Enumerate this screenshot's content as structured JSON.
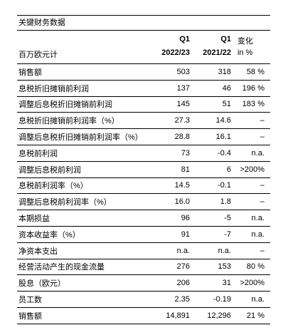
{
  "title": "关键财务数据",
  "header": {
    "col1_q": "Q1",
    "col2_q": "Q1",
    "col1_year": "2022/23",
    "col2_year": "2021/22",
    "change_label": "变化",
    "change_unit": "in %",
    "unit_label": "百万欧元计"
  },
  "rows": [
    {
      "label": "销售额",
      "v1": "503",
      "v2": "318",
      "chg": "58 %"
    },
    {
      "label": "息税折旧摊销前利润",
      "v1": "137",
      "v2": "46",
      "chg": "196 %"
    },
    {
      "label": "调整后息税折旧摊销前利润",
      "v1": "145",
      "v2": "51",
      "chg": "183 %"
    },
    {
      "label": "息税折旧摊销前利润率（%）",
      "v1": "27.3",
      "v2": "14.6",
      "chg": "–"
    },
    {
      "label": "调整后息税折旧摊销前利润率（%）",
      "v1": "28.8",
      "v2": "16.1",
      "chg": "–"
    },
    {
      "label": "息税前利润",
      "v1": "73",
      "v2": "-0.4",
      "chg": "n.a."
    },
    {
      "label": "调整后息税前利润",
      "v1": "81",
      "v2": "6",
      "chg": ">200%"
    },
    {
      "label": "息税前利润率（%）",
      "v1": "14.5",
      "v2": "-0.1",
      "chg": "–"
    },
    {
      "label": "调整后息税前利润率（%）",
      "v1": "16.0",
      "v2": "1.8",
      "chg": "–"
    },
    {
      "label": "本期损益",
      "v1": "96",
      "v2": "-5",
      "chg": "n.a."
    },
    {
      "label": "资本收益率（%）",
      "v1": "91",
      "v2": "-7",
      "chg": "n.a."
    },
    {
      "label": "净资本支出",
      "v1": "n.a.",
      "v2": "n.a.",
      "chg": "–"
    },
    {
      "label": "经营活动产生的现金流量",
      "v1": "276",
      "v2": "153",
      "chg": "80 %"
    },
    {
      "label": "股息（欧元）",
      "v1": "206",
      "v2": "31",
      "chg": ">200%"
    },
    {
      "label": "员工数",
      "v1": "2.35",
      "v2": "-0.19",
      "chg": "n.a."
    },
    {
      "label": "销售额",
      "v1": "14,891",
      "v2": "12,296",
      "chg": "21 %"
    }
  ]
}
